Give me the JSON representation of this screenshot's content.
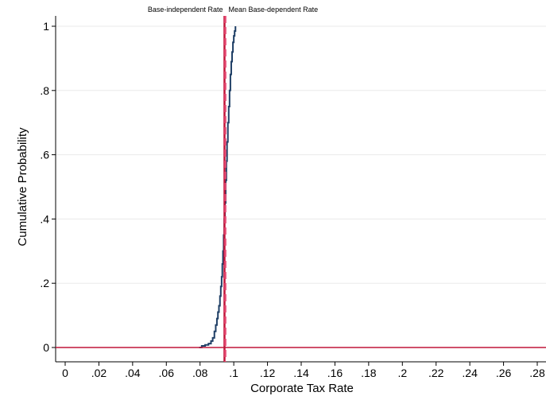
{
  "chart_data": {
    "type": "line",
    "title": "",
    "xlabel": "Corporate Tax Rate",
    "ylabel": "Cumulative Probability",
    "xlim": [
      -0.006,
      0.283
    ],
    "ylim": [
      -0.04,
      1.04
    ],
    "xticks": [
      0,
      0.02,
      0.04,
      0.06,
      0.08,
      0.1,
      0.12,
      0.14,
      0.16,
      0.18,
      0.2,
      0.22,
      0.24,
      0.26,
      0.28
    ],
    "xtick_labels": [
      "0",
      ".02",
      ".04",
      ".06",
      ".08",
      ".1",
      ".12",
      ".14",
      ".16",
      ".18",
      ".2",
      ".22",
      ".24",
      ".26",
      ".28"
    ],
    "yticks": [
      0,
      0.2,
      0.4,
      0.6,
      0.8,
      1
    ],
    "ytick_labels": [
      "0",
      ".2",
      ".4",
      ".6",
      ".8",
      "1"
    ],
    "grid": true,
    "series": [
      {
        "values_x": [
          0.0795,
          0.081,
          0.083,
          0.085,
          0.0865,
          0.0875,
          0.0885,
          0.0893,
          0.09,
          0.0906,
          0.0912,
          0.0918,
          0.0923,
          0.0928,
          0.0932,
          0.0936,
          0.094,
          0.0944,
          0.0948,
          0.0952,
          0.0956,
          0.096,
          0.0965,
          0.097,
          0.0975,
          0.098,
          0.0985,
          0.099,
          0.0995,
          0.1,
          0.1005,
          0.101
        ],
        "values_y": [
          0.0,
          0.005,
          0.008,
          0.012,
          0.02,
          0.03,
          0.05,
          0.07,
          0.09,
          0.11,
          0.13,
          0.16,
          0.19,
          0.22,
          0.26,
          0.3,
          0.35,
          0.4,
          0.45,
          0.52,
          0.58,
          0.64,
          0.7,
          0.75,
          0.8,
          0.85,
          0.89,
          0.92,
          0.95,
          0.97,
          0.985,
          1.0
        ],
        "color": "#1f3f66"
      }
    ],
    "reference_lines": [
      {
        "label": "Base-independent Rate",
        "x": 0.0945,
        "color": "#c0163a",
        "style": "solid"
      },
      {
        "label": "Mean Base-dependent Rate",
        "x": 0.095,
        "color": "#e64a73",
        "style": "dashed"
      },
      {
        "y": 0,
        "color": "#c0163a",
        "style": "solid"
      }
    ]
  }
}
